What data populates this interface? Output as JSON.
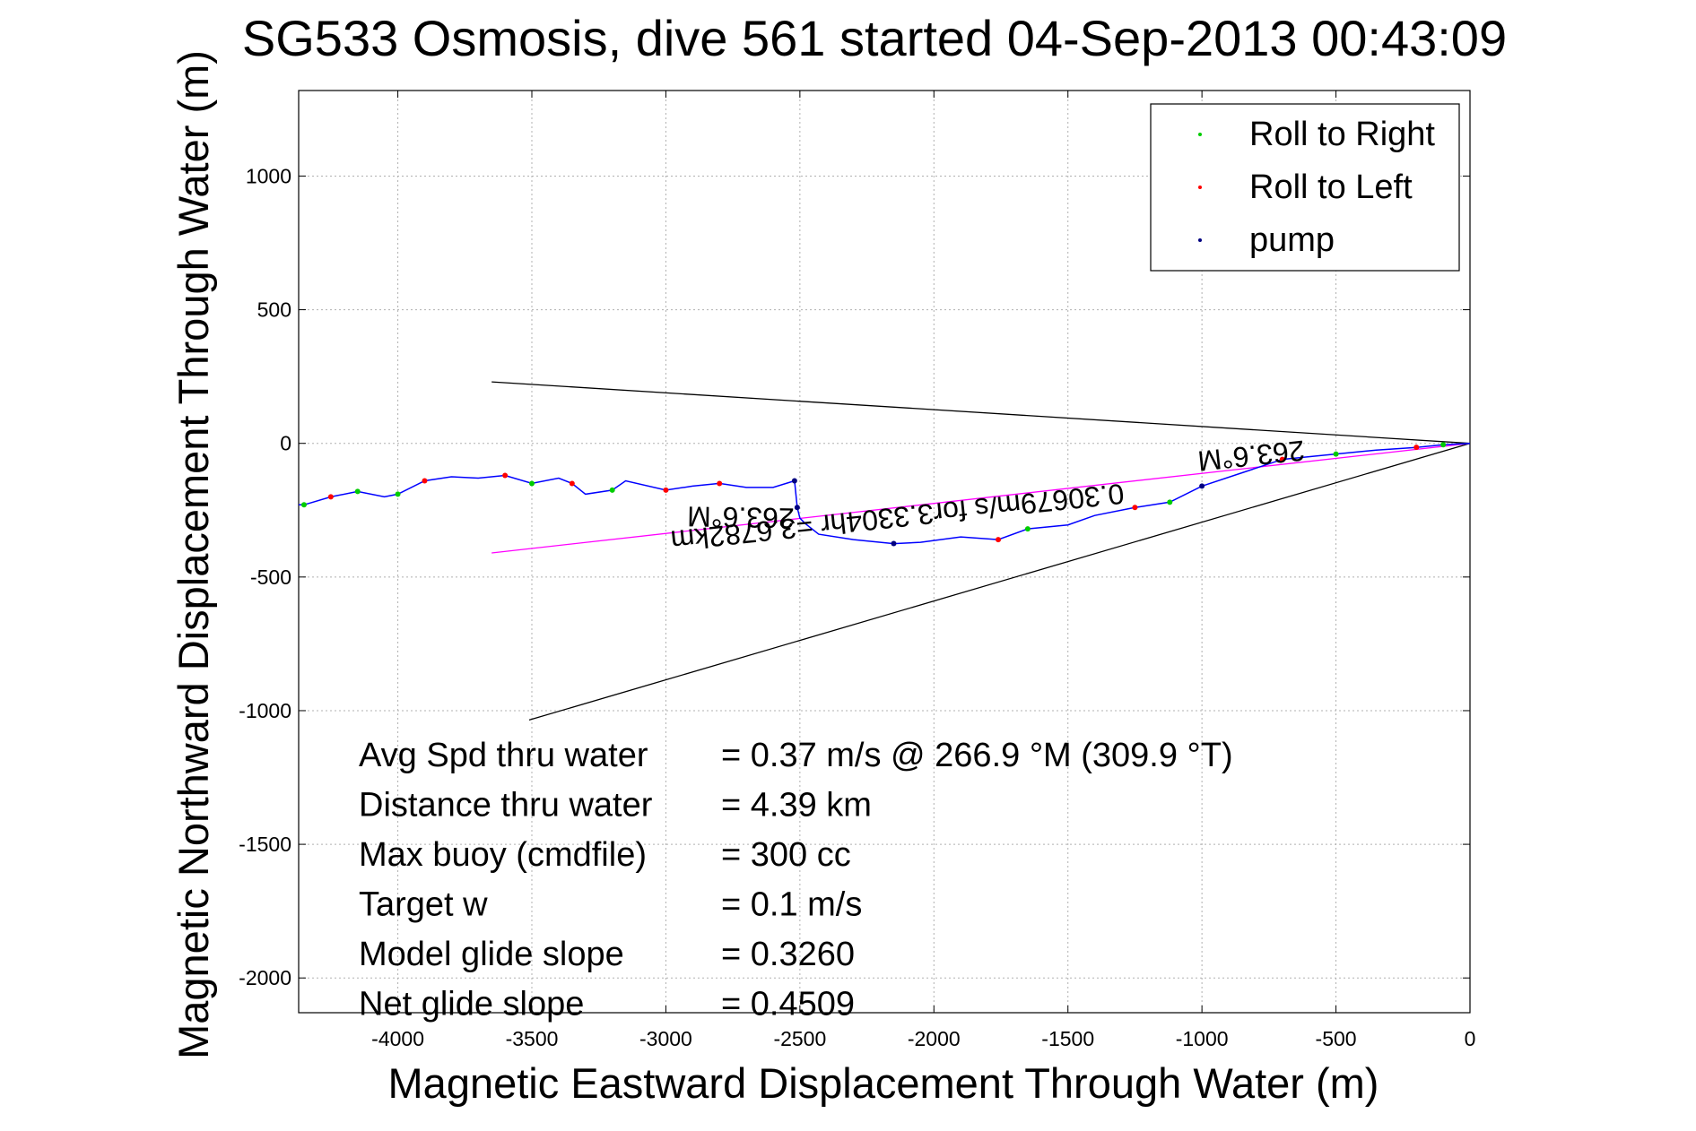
{
  "chart_data": {
    "type": "line",
    "title": "SG533 Osmosis, dive 561 started 04-Sep-2013 00:43:09",
    "xlabel": "Magnetic Eastward Displacement Through Water (m)",
    "ylabel": "Magnetic Northward Displacement Through Water (m)",
    "xlim": [
      -4370,
      0
    ],
    "ylim": [
      -2130,
      1320
    ],
    "xticks": [
      -4000,
      -3500,
      -3000,
      -2500,
      -2000,
      -1500,
      -1000,
      -500,
      0
    ],
    "yticks": [
      -2000,
      -1500,
      -1000,
      -500,
      0,
      500,
      1000
    ],
    "grid": true,
    "legend": {
      "placement": "top-right",
      "entries": [
        {
          "label": "Roll to Right",
          "color": "#00cc00"
        },
        {
          "label": "Roll to Left",
          "color": "#ff0000"
        },
        {
          "label": "pump",
          "color": "#000080"
        }
      ]
    },
    "colors": {
      "track": "#0000ff",
      "current": "#ff00ff",
      "guide": "#000000"
    },
    "track": {
      "x": [
        0,
        -100,
        -200,
        -350,
        -500,
        -700,
        -850,
        -1000,
        -1120,
        -1250,
        -1400,
        -1500,
        -1650,
        -1760,
        -1900,
        -2050,
        -2150,
        -2300,
        -2430,
        -2480,
        -2500,
        -2510,
        -2520,
        -2600,
        -2700,
        -2800,
        -2900,
        -3000,
        -3150,
        -3200,
        -3300,
        -3350,
        -3400,
        -3500,
        -3600,
        -3700,
        -3800,
        -3900,
        -4000,
        -4050,
        -4150,
        -4250,
        -4350,
        -4370
      ],
      "y": [
        0,
        -5,
        -15,
        -25,
        -40,
        -60,
        -110,
        -160,
        -220,
        -240,
        -270,
        -305,
        -320,
        -360,
        -350,
        -370,
        -375,
        -360,
        -340,
        -300,
        -280,
        -240,
        -140,
        -165,
        -165,
        -150,
        -160,
        -175,
        -140,
        -175,
        -190,
        -150,
        -130,
        -150,
        -120,
        -130,
        -125,
        -140,
        -190,
        -200,
        -180,
        -200,
        -230,
        -230
      ]
    },
    "markers": {
      "roll_right": {
        "x": [
          -100,
          -500,
          -1120,
          -1650,
          -3200,
          -3500,
          -4000,
          -4150,
          -4350
        ],
        "y": [
          -5,
          -40,
          -220,
          -320,
          -175,
          -150,
          -190,
          -180,
          -230
        ]
      },
      "roll_left": {
        "x": [
          -200,
          -700,
          -1250,
          -1760,
          -2800,
          -3000,
          -3350,
          -3600,
          -3900,
          -4250
        ],
        "y": [
          -15,
          -60,
          -240,
          -360,
          -150,
          -175,
          -150,
          -120,
          -140,
          -200
        ]
      },
      "pump": {
        "x": [
          -1000,
          -2150,
          -2510,
          -2520
        ],
        "y": [
          -160,
          -375,
          -240,
          -140
        ]
      }
    },
    "lines": {
      "current": {
        "x": [
          0,
          -3650
        ],
        "y": [
          0,
          -410
        ]
      },
      "guide_upper": {
        "x": [
          0,
          -3650
        ],
        "y": [
          0,
          230
        ]
      },
      "guide_lower": {
        "x": [
          0,
          -3510
        ],
        "y": [
          0,
          -1035
        ]
      }
    },
    "annotations": [
      {
        "text": "263.6°M",
        "x": -2720,
        "y": -240,
        "rotate": 181
      },
      {
        "text": "263.6°M",
        "x": -820,
        "y": -10,
        "rotate": 174
      },
      {
        "text": "0.30679m/s for3.3304hr =3.6782km",
        "x": -2140,
        "y": -240,
        "rotate": 174
      }
    ],
    "stats": [
      {
        "label": "Avg Spd thru water",
        "value": "=  0.37 m/s @ 266.9 °M (309.9 °T)"
      },
      {
        "label": "Distance thru water",
        "value": "=  4.39 km"
      },
      {
        "label": "Max buoy (cmdfile)",
        "value": "= 300 cc"
      },
      {
        "label": "Target w",
        "value": "= 0.1 m/s"
      },
      {
        "label": "Model glide slope",
        "value": "= 0.3260"
      },
      {
        "label": "Net glide slope",
        "value": "= 0.4509"
      }
    ]
  }
}
